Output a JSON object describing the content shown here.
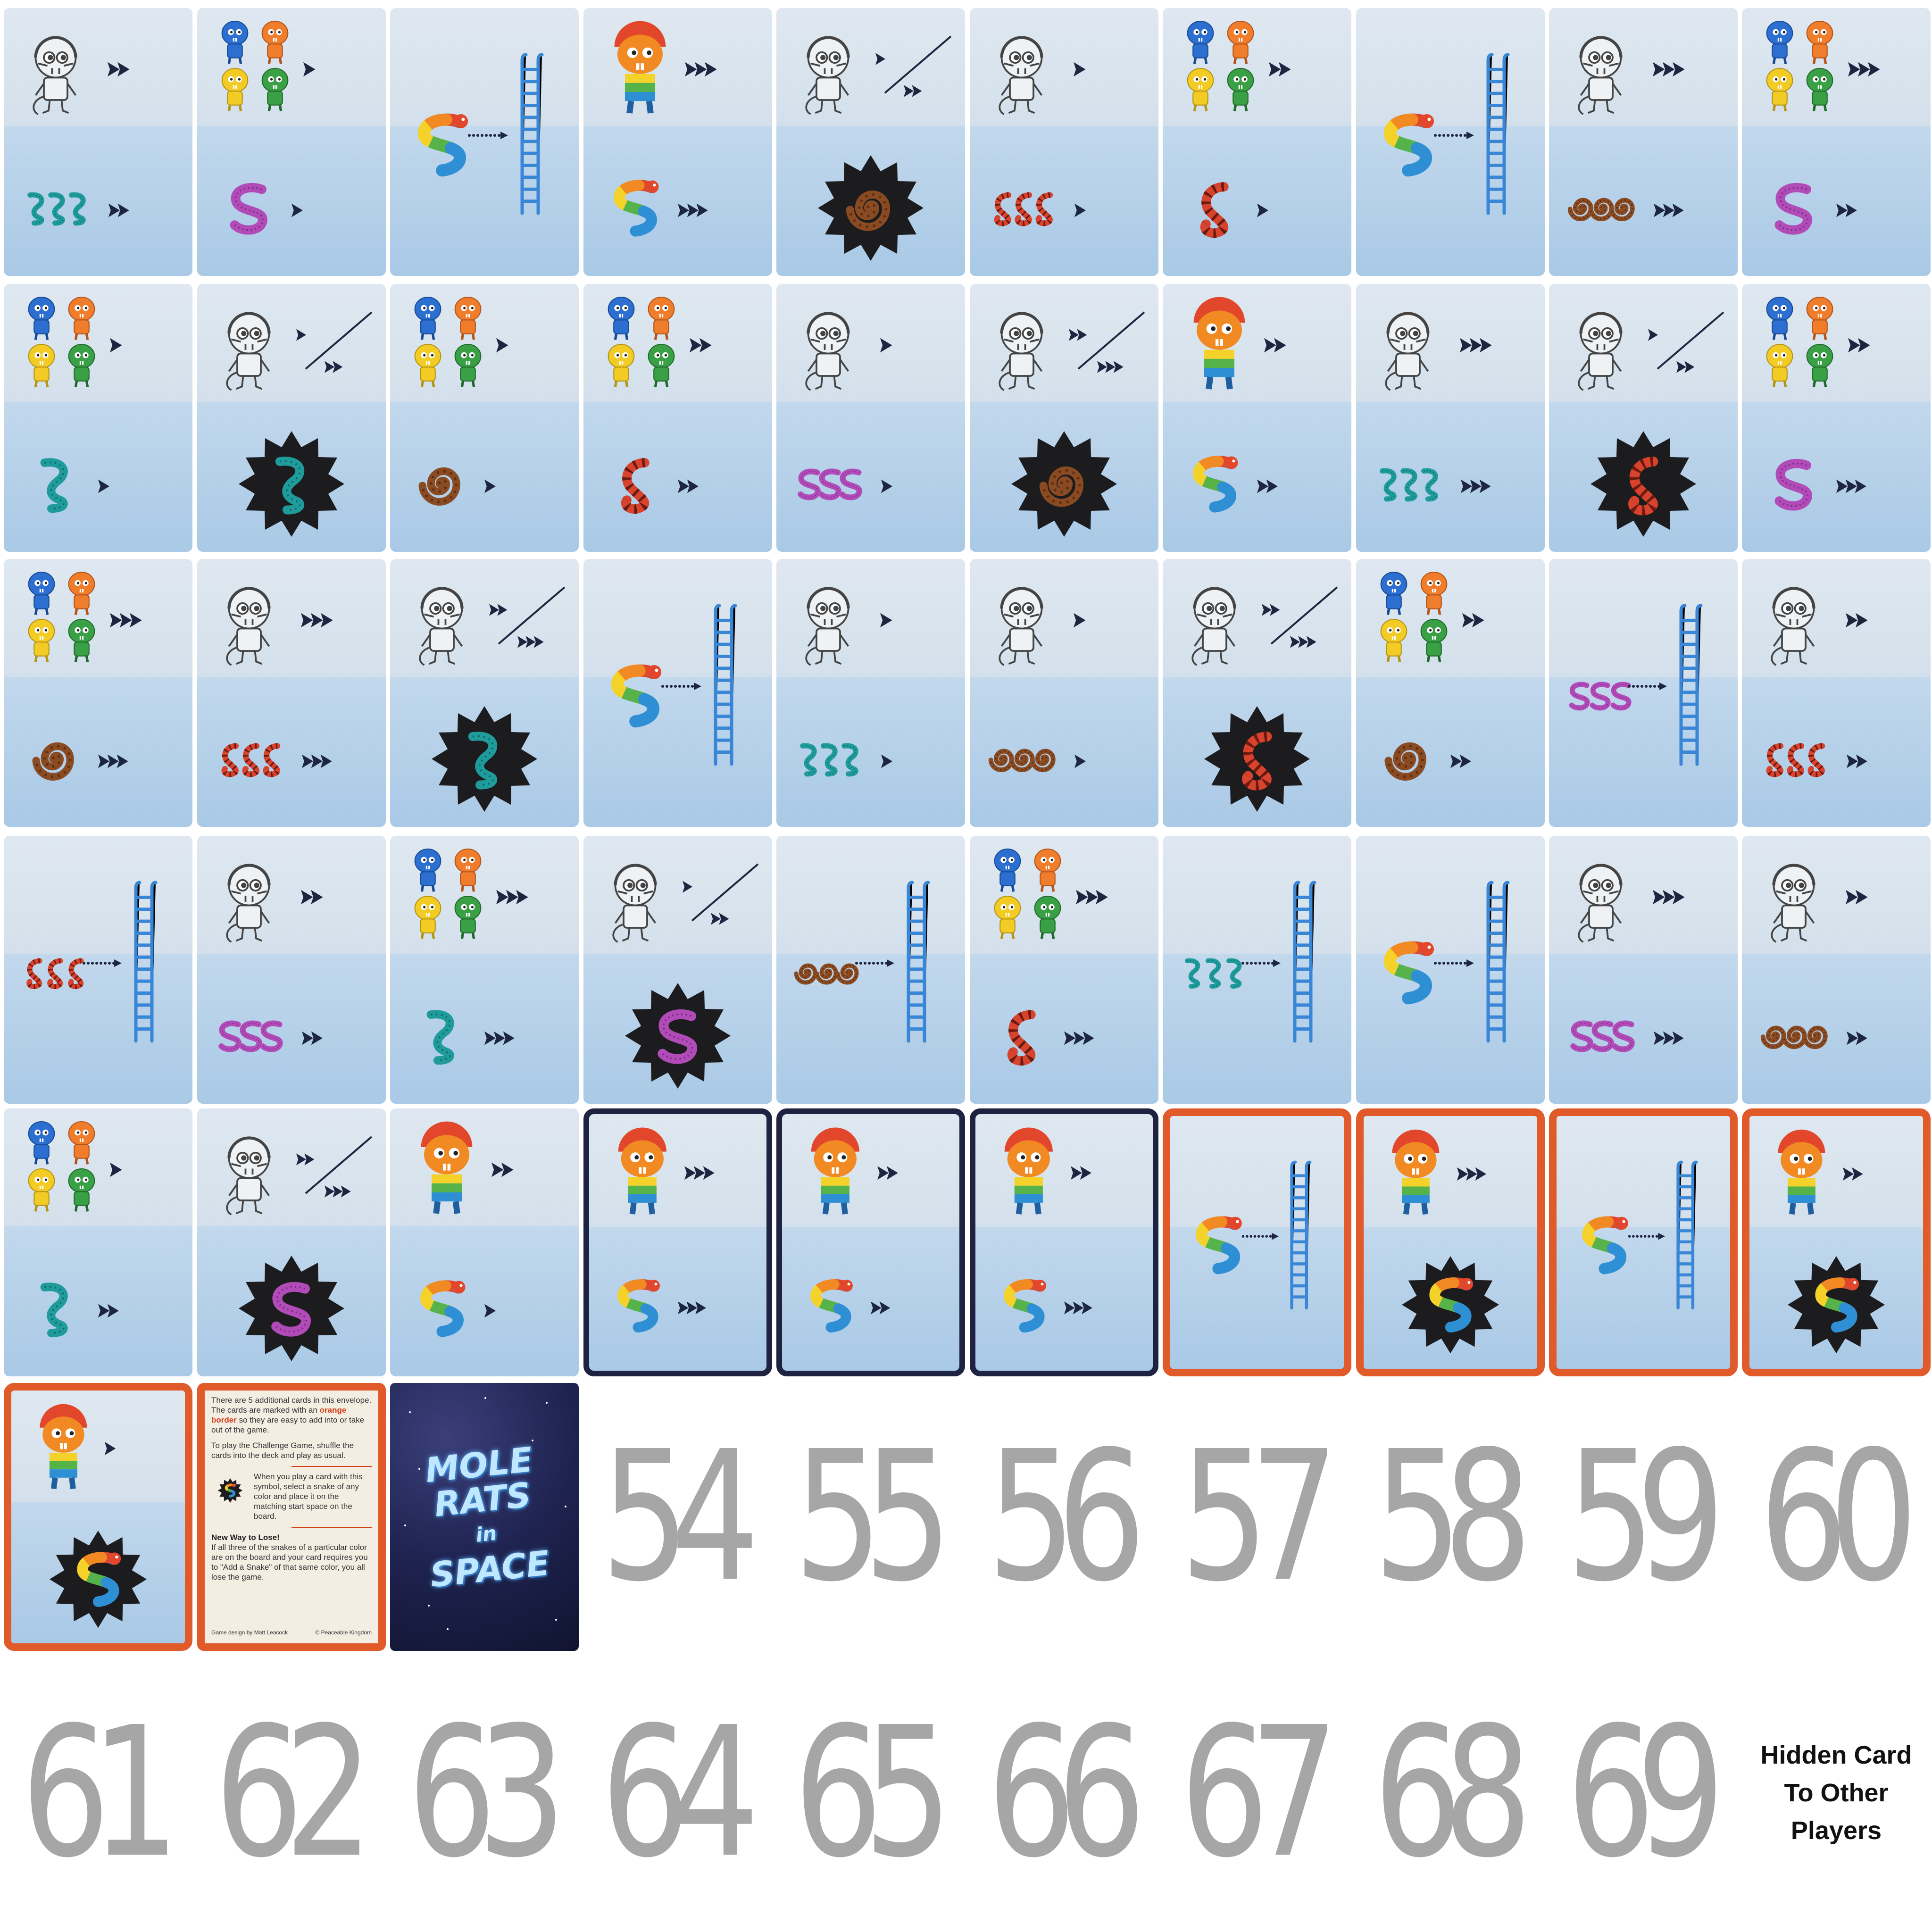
{
  "sheet": {
    "title": "",
    "columns": 10,
    "rows": 7
  },
  "colors": {
    "teal": "#1f9b9b",
    "purple": "#b04bb8",
    "red": "#d8432e",
    "brown": "#8a4b22",
    "arrow": "#1e2540",
    "ladder": "#3a86d6",
    "dark_border": "#1d2340",
    "orange_border": "#e05a2a",
    "placeholder_number": "#a6a6a6"
  },
  "legend": {
    "top_kinds": {
      "astronaut": "outline astronaut mole rat",
      "astronaut_split": "outline astronaut mole rat with split move (slash)",
      "four_rats": "four colored mole rats (blue, orange, yellow, green)",
      "rainbow_rat": "rainbow mole rat"
    },
    "bottom_kinds": {
      "snake_move": "snake(s) followed by move arrows",
      "burst": "snake inside black starburst",
      "ladder": "snake with dotted arrow to ladder (full card)"
    }
  },
  "cards": [
    {
      "n": 1,
      "top": {
        "kind": "astronaut",
        "arrows": 2
      },
      "bottom": {
        "kind": "snake_move",
        "snake": "teal",
        "count": 3,
        "arrows": 2
      }
    },
    {
      "n": 2,
      "top": {
        "kind": "four_rats",
        "arrows": 1
      },
      "bottom": {
        "kind": "snake_move",
        "snake": "purple",
        "count": 1,
        "arrows": 1
      }
    },
    {
      "n": 3,
      "full": {
        "kind": "ladder",
        "snake": "rainbow",
        "count": 1
      }
    },
    {
      "n": 4,
      "top": {
        "kind": "rainbow_rat",
        "arrows": 3
      },
      "bottom": {
        "kind": "snake_move",
        "snake": "rainbow",
        "count": 1,
        "arrows": 3
      }
    },
    {
      "n": 5,
      "top": {
        "kind": "astronaut_split",
        "arrows_a": 1,
        "arrows_b": 2
      },
      "bottom": {
        "kind": "burst",
        "snake": "brown"
      }
    },
    {
      "n": 6,
      "top": {
        "kind": "astronaut",
        "arrows": 1
      },
      "bottom": {
        "kind": "snake_move",
        "snake": "red",
        "count": 3,
        "arrows": 1
      }
    },
    {
      "n": 7,
      "top": {
        "kind": "four_rats",
        "arrows": 2
      },
      "bottom": {
        "kind": "snake_move",
        "snake": "red",
        "count": 1,
        "arrows": 1
      }
    },
    {
      "n": 8,
      "full": {
        "kind": "ladder",
        "snake": "rainbow",
        "count": 1
      }
    },
    {
      "n": 9,
      "top": {
        "kind": "astronaut",
        "arrows": 3
      },
      "bottom": {
        "kind": "snake_move",
        "snake": "brown",
        "count": 3,
        "arrows": 3
      }
    },
    {
      "n": 10,
      "top": {
        "kind": "four_rats",
        "arrows": 3
      },
      "bottom": {
        "kind": "snake_move",
        "snake": "purple",
        "count": 1,
        "arrows": 2
      }
    },
    {
      "n": 11,
      "top": {
        "kind": "four_rats",
        "arrows": 1
      },
      "bottom": {
        "kind": "snake_move",
        "snake": "teal",
        "count": 1,
        "arrows": 1
      }
    },
    {
      "n": 12,
      "top": {
        "kind": "astronaut_split",
        "arrows_a": 1,
        "arrows_b": 2
      },
      "bottom": {
        "kind": "burst",
        "snake": "teal"
      }
    },
    {
      "n": 13,
      "top": {
        "kind": "four_rats",
        "arrows": 1
      },
      "bottom": {
        "kind": "snake_move",
        "snake": "brown",
        "count": 1,
        "arrows": 1
      }
    },
    {
      "n": 14,
      "top": {
        "kind": "four_rats",
        "arrows": 2
      },
      "bottom": {
        "kind": "snake_move",
        "snake": "red",
        "count": 1,
        "arrows": 2
      }
    },
    {
      "n": 15,
      "top": {
        "kind": "astronaut",
        "arrows": 1
      },
      "bottom": {
        "kind": "snake_move",
        "snake": "purple",
        "count": 3,
        "arrows": 1
      }
    },
    {
      "n": 16,
      "top": {
        "kind": "astronaut_split",
        "arrows_a": 2,
        "arrows_b": 3
      },
      "bottom": {
        "kind": "burst",
        "snake": "brown"
      }
    },
    {
      "n": 17,
      "top": {
        "kind": "rainbow_rat",
        "arrows": 2
      },
      "bottom": {
        "kind": "snake_move",
        "snake": "rainbow",
        "count": 1,
        "arrows": 2
      }
    },
    {
      "n": 18,
      "top": {
        "kind": "astronaut",
        "arrows": 3
      },
      "bottom": {
        "kind": "snake_move",
        "snake": "teal",
        "count": 3,
        "arrows": 3
      }
    },
    {
      "n": 19,
      "top": {
        "kind": "astronaut_split",
        "arrows_a": 1,
        "arrows_b": 2
      },
      "bottom": {
        "kind": "burst",
        "snake": "red"
      }
    },
    {
      "n": 20,
      "top": {
        "kind": "four_rats",
        "arrows": 2
      },
      "bottom": {
        "kind": "snake_move",
        "snake": "purple",
        "count": 1,
        "arrows": 3
      }
    },
    {
      "n": 21,
      "top": {
        "kind": "four_rats",
        "arrows": 3
      },
      "bottom": {
        "kind": "snake_move",
        "snake": "brown",
        "count": 1,
        "arrows": 3
      }
    },
    {
      "n": 22,
      "top": {
        "kind": "astronaut",
        "arrows": 3
      },
      "bottom": {
        "kind": "snake_move",
        "snake": "red",
        "count": 3,
        "arrows": 3
      }
    },
    {
      "n": 23,
      "top": {
        "kind": "astronaut_split",
        "arrows_a": 2,
        "arrows_b": 3
      },
      "bottom": {
        "kind": "burst",
        "snake": "teal"
      }
    },
    {
      "n": 24,
      "full": {
        "kind": "ladder",
        "snake": "rainbow",
        "count": 1
      }
    },
    {
      "n": 25,
      "top": {
        "kind": "astronaut",
        "arrows": 1
      },
      "bottom": {
        "kind": "snake_move",
        "snake": "teal",
        "count": 3,
        "arrows": 1
      }
    },
    {
      "n": 26,
      "top": {
        "kind": "astronaut",
        "arrows": 1
      },
      "bottom": {
        "kind": "snake_move",
        "snake": "brown",
        "count": 3,
        "arrows": 1
      }
    },
    {
      "n": 27,
      "top": {
        "kind": "astronaut_split",
        "arrows_a": 2,
        "arrows_b": 3
      },
      "bottom": {
        "kind": "burst",
        "snake": "red"
      }
    },
    {
      "n": 28,
      "top": {
        "kind": "four_rats",
        "arrows": 2
      },
      "bottom": {
        "kind": "snake_move",
        "snake": "brown",
        "count": 1,
        "arrows": 2
      }
    },
    {
      "n": 29,
      "full": {
        "kind": "ladder",
        "snake": "purple",
        "count": 3
      }
    },
    {
      "n": 30,
      "top": {
        "kind": "astronaut",
        "arrows": 2
      },
      "bottom": {
        "kind": "snake_move",
        "snake": "red",
        "count": 3,
        "arrows": 2
      }
    },
    {
      "n": 31,
      "full": {
        "kind": "ladder",
        "snake": "red",
        "count": 3
      }
    },
    {
      "n": 32,
      "top": {
        "kind": "astronaut",
        "arrows": 2
      },
      "bottom": {
        "kind": "snake_move",
        "snake": "purple",
        "count": 3,
        "arrows": 2
      }
    },
    {
      "n": 33,
      "top": {
        "kind": "four_rats",
        "arrows": 3
      },
      "bottom": {
        "kind": "snake_move",
        "snake": "teal",
        "count": 1,
        "arrows": 3
      }
    },
    {
      "n": 34,
      "top": {
        "kind": "astronaut_split",
        "arrows_a": 1,
        "arrows_b": 2
      },
      "bottom": {
        "kind": "burst",
        "snake": "purple"
      }
    },
    {
      "n": 35,
      "full": {
        "kind": "ladder",
        "snake": "brown",
        "count": 3
      }
    },
    {
      "n": 36,
      "top": {
        "kind": "four_rats",
        "arrows": 3
      },
      "bottom": {
        "kind": "snake_move",
        "snake": "red",
        "count": 1,
        "arrows": 3
      }
    },
    {
      "n": 37,
      "full": {
        "kind": "ladder",
        "snake": "teal",
        "count": 3
      }
    },
    {
      "n": 38,
      "full": {
        "kind": "ladder",
        "snake": "rainbow",
        "count": 1
      }
    },
    {
      "n": 39,
      "top": {
        "kind": "astronaut",
        "arrows": 3
      },
      "bottom": {
        "kind": "snake_move",
        "snake": "purple",
        "count": 3,
        "arrows": 3
      }
    },
    {
      "n": 40,
      "top": {
        "kind": "astronaut",
        "arrows": 2
      },
      "bottom": {
        "kind": "snake_move",
        "snake": "brown",
        "count": 3,
        "arrows": 2
      }
    },
    {
      "n": 41,
      "top": {
        "kind": "four_rats",
        "arrows": 1
      },
      "bottom": {
        "kind": "snake_move",
        "snake": "teal",
        "count": 1,
        "arrows": 2
      }
    },
    {
      "n": 42,
      "top": {
        "kind": "astronaut_split",
        "arrows_a": 2,
        "arrows_b": 3
      },
      "bottom": {
        "kind": "burst",
        "snake": "purple"
      }
    },
    {
      "n": 43,
      "top": {
        "kind": "rainbow_rat",
        "arrows": 2
      },
      "bottom": {
        "kind": "snake_move",
        "snake": "rainbow",
        "count": 1,
        "arrows": 1
      }
    },
    {
      "n": 44,
      "border": "dark",
      "top": {
        "kind": "rainbow_rat",
        "arrows": 3
      },
      "bottom": {
        "kind": "snake_move",
        "snake": "rainbow",
        "count": 1,
        "arrows": 3
      }
    },
    {
      "n": 45,
      "border": "dark",
      "top": {
        "kind": "rainbow_rat",
        "arrows": 2
      },
      "bottom": {
        "kind": "snake_move",
        "snake": "rainbow",
        "count": 1,
        "arrows": 2
      }
    },
    {
      "n": 46,
      "border": "dark",
      "top": {
        "kind": "rainbow_rat",
        "arrows": 2
      },
      "bottom": {
        "kind": "snake_move",
        "snake": "rainbow",
        "count": 1,
        "arrows": 3
      }
    },
    {
      "n": 47,
      "border": "orange",
      "full": {
        "kind": "ladder",
        "snake": "rainbow",
        "count": 1
      }
    },
    {
      "n": 48,
      "border": "orange",
      "top": {
        "kind": "rainbow_rat",
        "arrows": 3
      },
      "bottom": {
        "kind": "burst",
        "snake": "rainbow"
      }
    },
    {
      "n": 49,
      "border": "orange",
      "full": {
        "kind": "ladder",
        "snake": "rainbow",
        "count": 1
      }
    },
    {
      "n": 50,
      "border": "orange",
      "top": {
        "kind": "rainbow_rat",
        "arrows": 2
      },
      "bottom": {
        "kind": "burst",
        "snake": "rainbow"
      }
    },
    {
      "n": 51,
      "border": "orange",
      "top": {
        "kind": "rainbow_rat",
        "arrows": 1
      },
      "bottom": {
        "kind": "burst",
        "snake": "rainbow"
      }
    },
    {
      "n": 52,
      "special": "rules"
    },
    {
      "n": 53,
      "special": "back"
    }
  ],
  "rules_card": {
    "intro_a": "There are 5 additional cards in this envelope. The cards are marked with an",
    "intro_highlight": "orange border",
    "intro_b": "so they are easy to add into or take out of the game.",
    "play": "To play the Challenge Game, shuffle the cards into the deck and play as usual.",
    "symbol_text": "When you play a card with this symbol, select a snake of any color and place it on the matching start space on the board.",
    "lose_title": "New Way to Lose!",
    "lose_text": "If all three of the snakes of a particular color are on the board and your card requires you to \"Add a Snake\" of that same color, you all lose the game.",
    "credit_left": "Game design by Matt Leacock",
    "credit_right": "© Peaceable Kingdom"
  },
  "card_back": {
    "line1": "MOLE",
    "line2": "RATS",
    "line3": "in",
    "line4": "SPACE"
  },
  "placeholders": [
    "54",
    "55",
    "56",
    "57",
    "58",
    "59",
    "60",
    "61",
    "62",
    "63",
    "64",
    "65",
    "66",
    "67",
    "68",
    "69"
  ],
  "hidden_card": {
    "line1": "Hidden Card",
    "line2": "To Other",
    "line3": "Players"
  }
}
